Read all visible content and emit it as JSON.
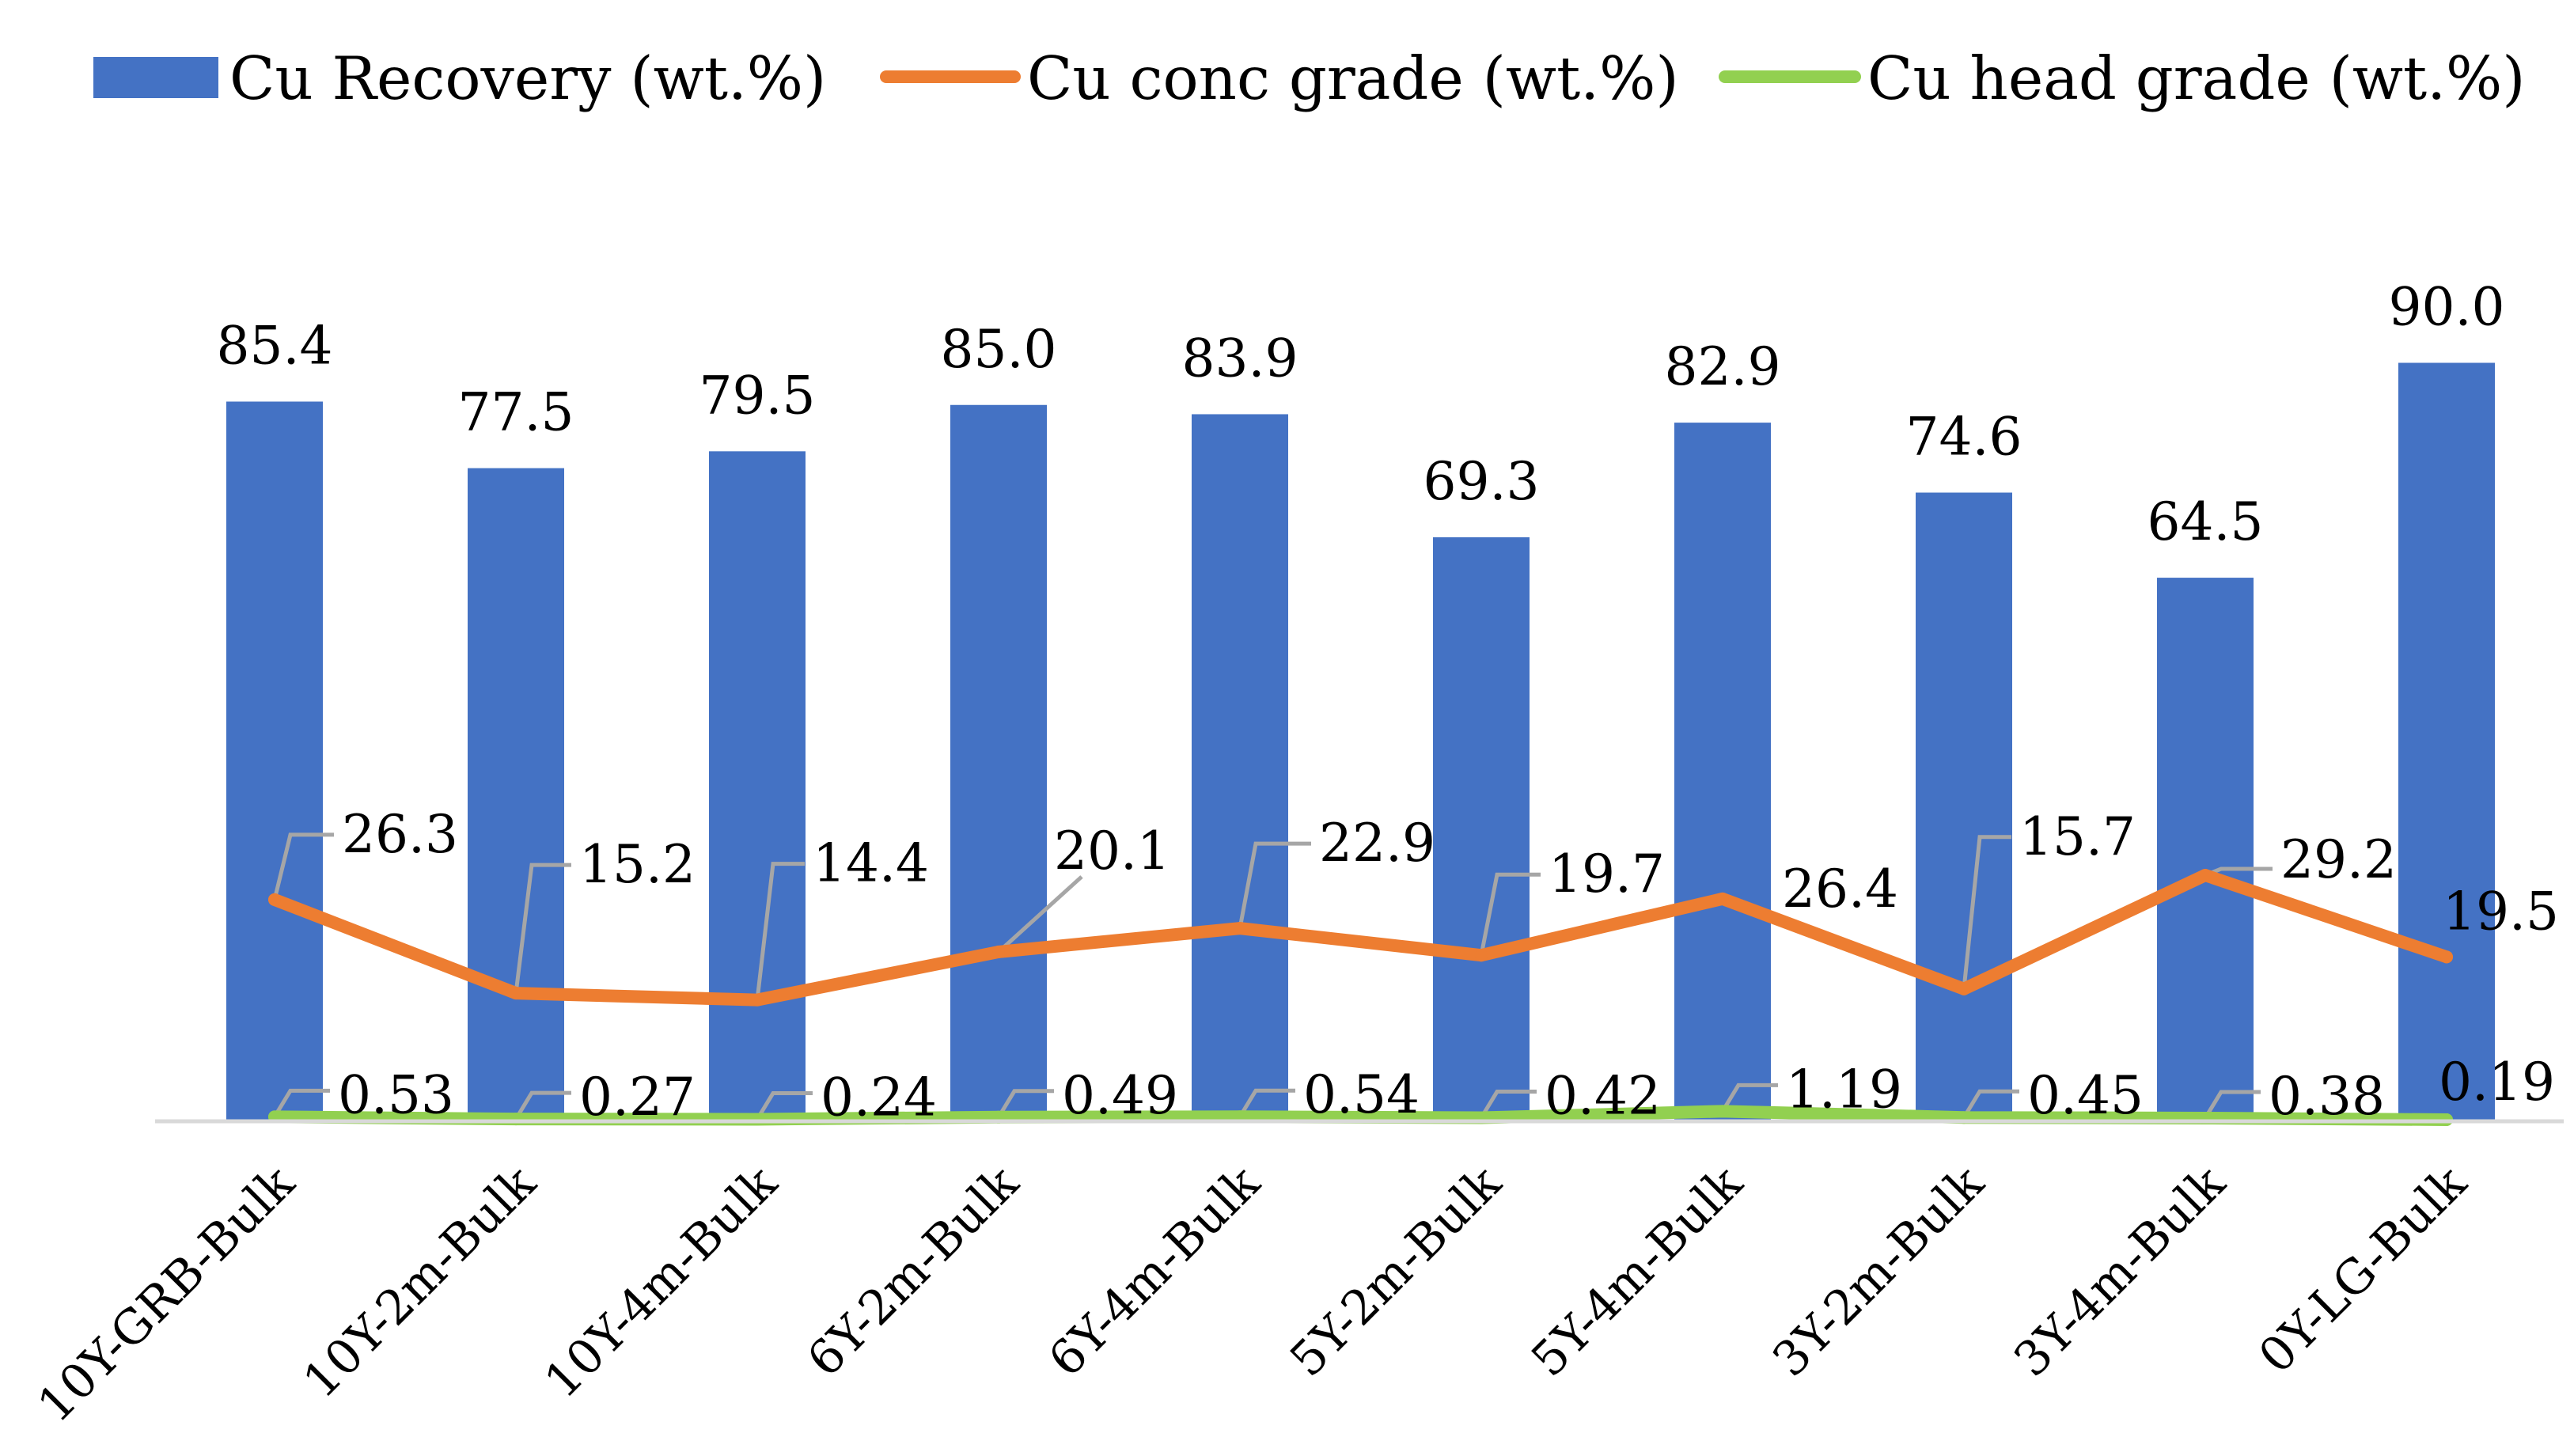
{
  "chart_data": {
    "type": "bar",
    "title": "",
    "xlabel": "",
    "ylabel": "",
    "ylim": [
      0,
      100
    ],
    "grid": false,
    "legend_position": "top",
    "categories": [
      "10Y-GRB-Bulk",
      "10Y-2m-Bulk",
      "10Y-4m-Bulk",
      "6Y-2m-Bulk",
      "6Y-4m-Bulk",
      "5Y-2m-Bulk",
      "5Y-4m-Bulk",
      "3Y-2m-Bulk",
      "3Y-4m-Bulk",
      "0Y-LG-Bulk"
    ],
    "series": [
      {
        "name": "Cu Recovery (wt.%)",
        "type": "bar",
        "color": "#4472C4",
        "values": [
          85.4,
          77.5,
          79.5,
          85.0,
          83.9,
          69.3,
          82.9,
          74.6,
          64.5,
          90.0
        ],
        "labels": [
          "85.4",
          "77.5",
          "79.5",
          "85.0",
          "83.9",
          "69.3",
          "82.9",
          "74.6",
          "64.5",
          "90.0"
        ]
      },
      {
        "name": "Cu conc grade (wt.%)",
        "type": "line",
        "color": "#ED7D31",
        "values": [
          26.3,
          15.2,
          14.4,
          20.1,
          22.9,
          19.7,
          26.4,
          15.7,
          29.2,
          19.5
        ],
        "labels": [
          "26.3",
          "15.2",
          "14.4",
          "20.1",
          "22.9",
          "19.7",
          "26.4",
          "15.7",
          "29.2",
          "19.5"
        ]
      },
      {
        "name": "Cu head grade (wt.%)",
        "type": "line",
        "color": "#92D050",
        "values": [
          0.53,
          0.27,
          0.24,
          0.49,
          0.54,
          0.42,
          1.19,
          0.45,
          0.38,
          0.19
        ],
        "labels": [
          "0.53",
          "0.27",
          "0.24",
          "0.49",
          "0.54",
          "0.42",
          "1.19",
          "0.45",
          "0.38",
          "0.19"
        ]
      }
    ],
    "leader_line_color": "#A6A6A6",
    "axis_color": "#D9D9D9"
  }
}
